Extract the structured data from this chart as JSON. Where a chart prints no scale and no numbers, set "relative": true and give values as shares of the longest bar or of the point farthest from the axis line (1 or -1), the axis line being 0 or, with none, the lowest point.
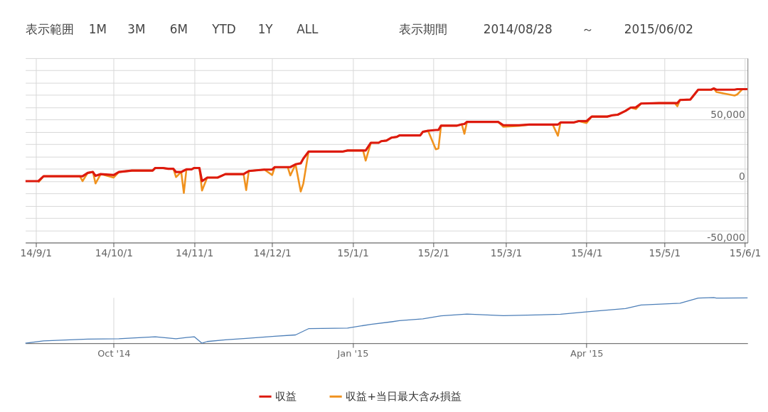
{
  "chart_data": [
    {
      "type": "line",
      "annotations": [
        "表示範囲",
        "1M",
        "3M",
        "6M",
        "YTD",
        "1Y",
        "ALL",
        "表示期間",
        "2014/08/28",
        "～",
        "2015/06/02"
      ],
      "x": [
        "2014-08-28",
        "2014-09-02",
        "2014-09-04",
        "2014-09-18",
        "2014-09-19",
        "2014-09-21",
        "2014-09-23",
        "2014-09-24",
        "2014-09-26",
        "2014-10-01",
        "2014-10-03",
        "2014-10-08",
        "2014-10-16",
        "2014-10-17",
        "2014-10-20",
        "2014-10-22",
        "2014-10-24",
        "2014-10-25",
        "2014-10-27",
        "2014-10-28",
        "2014-10-29",
        "2014-10-31",
        "2014-11-01",
        "2014-11-03",
        "2014-11-04",
        "2014-11-06",
        "2014-11-10",
        "2014-11-13",
        "2014-11-20",
        "2014-11-21",
        "2014-11-22",
        "2014-11-28",
        "2014-12-01",
        "2014-12-02",
        "2014-12-07",
        "2014-12-08",
        "2014-12-10",
        "2014-12-12",
        "2014-12-13",
        "2014-12-15",
        "2014-12-28",
        "2014-12-30",
        "2015-01-05",
        "2015-01-06",
        "2015-01-08",
        "2015-01-11",
        "2015-01-12",
        "2015-01-14",
        "2015-01-16",
        "2015-01-18",
        "2015-01-19",
        "2015-01-27",
        "2015-01-28",
        "2015-01-30",
        "2015-02-02",
        "2015-02-03",
        "2015-02-04",
        "2015-02-10",
        "2015-02-12",
        "2015-02-13",
        "2015-02-14",
        "2015-02-26",
        "2015-02-28",
        "2015-03-06",
        "2015-03-10",
        "2015-03-19",
        "2015-03-21",
        "2015-03-22",
        "2015-03-27",
        "2015-03-29",
        "2015-04-01",
        "2015-04-03",
        "2015-04-09",
        "2015-04-11",
        "2015-04-13",
        "2015-04-16",
        "2015-04-18",
        "2015-04-20",
        "2015-04-22",
        "2015-04-29",
        "2015-05-05",
        "2015-05-06",
        "2015-05-07",
        "2015-05-11",
        "2015-05-14",
        "2015-05-19",
        "2015-05-20",
        "2015-05-21",
        "2015-05-28",
        "2015-05-29",
        "2015-05-31",
        "2015-06-02"
      ],
      "series": [
        {
          "name": "収益",
          "color": "#dd1a0e",
          "values": [
            0,
            0,
            4000,
            4000,
            4000,
            6700,
            7500,
            4300,
            5700,
            5000,
            7400,
            8600,
            8600,
            10700,
            10700,
            10000,
            10000,
            7400,
            7400,
            8500,
            9600,
            9600,
            10700,
            10700,
            0,
            2900,
            2900,
            5700,
            5700,
            7000,
            8200,
            9400,
            9400,
            11400,
            11400,
            11400,
            13700,
            14500,
            18300,
            24000,
            24000,
            24900,
            24900,
            24900,
            31200,
            31200,
            32500,
            33000,
            35400,
            36000,
            37200,
            37200,
            40100,
            41000,
            41600,
            41600,
            45100,
            45100,
            46200,
            46500,
            48200,
            48200,
            45500,
            45500,
            46000,
            46000,
            46000,
            47700,
            47700,
            48800,
            48800,
            52500,
            52500,
            53600,
            54000,
            57100,
            59800,
            60000,
            63100,
            63500,
            63500,
            63500,
            66000,
            66400,
            74400,
            74400,
            75400,
            74400,
            74400,
            74800,
            74800,
            74800
          ]
        },
        {
          "name": "収益+当日最大含み損益",
          "color": "#f0921e",
          "values": [
            null,
            -1000,
            4000,
            4000,
            0,
            6700,
            7500,
            -1900,
            5700,
            2900,
            7400,
            8600,
            8600,
            10700,
            10700,
            10000,
            10000,
            3300,
            7400,
            -9600,
            9600,
            9600,
            10700,
            10700,
            -7700,
            2900,
            2900,
            5700,
            5700,
            -7300,
            8200,
            9400,
            5000,
            11400,
            11400,
            4600,
            13700,
            -8500,
            -1900,
            24000,
            24000,
            24900,
            24900,
            16700,
            31200,
            31200,
            32500,
            33000,
            35400,
            36000,
            37200,
            37200,
            40100,
            41000,
            25900,
            26500,
            45100,
            45100,
            46200,
            38500,
            48200,
            48200,
            44200,
            45000,
            46000,
            46000,
            36900,
            47700,
            47700,
            48800,
            47300,
            52500,
            52500,
            53600,
            54000,
            57100,
            59800,
            58600,
            63100,
            63500,
            63500,
            60900,
            66000,
            66400,
            74400,
            74400,
            75400,
            72500,
            69600,
            70500,
            74800,
            74800
          ]
        }
      ],
      "xlim": [
        "2014-08-28",
        "2015-06-02"
      ],
      "xticks": [
        {
          "value": "2014-09-01",
          "label": "14/9/1"
        },
        {
          "value": "2014-10-01",
          "label": "14/10/1"
        },
        {
          "value": "2014-11-01",
          "label": "14/11/1"
        },
        {
          "value": "2014-12-01",
          "label": "14/12/1"
        },
        {
          "value": "2015-01-01",
          "label": "15/1/1"
        },
        {
          "value": "2015-02-01",
          "label": "15/2/1"
        },
        {
          "value": "2015-03-01",
          "label": "15/3/1"
        },
        {
          "value": "2015-04-01",
          "label": "15/4/1"
        },
        {
          "value": "2015-05-01",
          "label": "15/5/1"
        },
        {
          "value": "2015-06-01",
          "label": "15/6/1"
        }
      ],
      "ylim": [
        -50000,
        100000
      ],
      "yticks": [
        {
          "value": -50000,
          "label": "-50,000"
        },
        {
          "value": -40000,
          "label": null
        },
        {
          "value": -30000,
          "label": null
        },
        {
          "value": -20000,
          "label": null
        },
        {
          "value": -10000,
          "label": null
        },
        0,
        {
          "value": 10000,
          "label": null
        },
        {
          "value": 20000,
          "label": null
        },
        {
          "value": 30000,
          "label": null
        },
        {
          "value": 40000,
          "label": null
        },
        {
          "value": 50000,
          "label": "50,000"
        },
        {
          "value": 60000,
          "label": null
        },
        {
          "value": 70000,
          "label": null
        },
        {
          "value": 80000,
          "label": null
        },
        {
          "value": 90000,
          "label": null
        },
        {
          "value": 100000,
          "label": null
        }
      ],
      "grid": true,
      "legend": "bottom",
      "line_style": "solid"
    },
    {
      "type": "line",
      "relative": true,
      "x": [
        "2014-08-28",
        "2014-09-04",
        "2014-09-21",
        "2014-10-03",
        "2014-10-17",
        "2014-10-25",
        "2014-10-29",
        "2014-11-01",
        "2014-11-04",
        "2014-11-06",
        "2014-11-13",
        "2014-11-22",
        "2014-12-02",
        "2014-12-10",
        "2014-12-15",
        "2014-12-30",
        "2015-01-08",
        "2015-01-16",
        "2015-01-19",
        "2015-01-28",
        "2015-02-04",
        "2015-02-14",
        "2015-02-28",
        "2015-03-22",
        "2015-04-03",
        "2015-04-16",
        "2015-04-22",
        "2015-05-07",
        "2015-05-14",
        "2015-05-20",
        "2015-05-21",
        "2015-06-02"
      ],
      "series": [
        {
          "color": "#4d7fb8",
          "values": [
            0,
            0.053,
            0.089,
            0.098,
            0.142,
            0.098,
            0.127,
            0.142,
            0,
            0.038,
            0.076,
            0.109,
            0.151,
            0.182,
            0.318,
            0.33,
            0.414,
            0.469,
            0.493,
            0.532,
            0.598,
            0.639,
            0.603,
            0.633,
            0.696,
            0.757,
            0.837,
            0.875,
            0.987,
            1,
            0.987,
            0.992
          ]
        }
      ],
      "xlim": [
        "2014-08-28",
        "2015-06-02"
      ],
      "xticks": [
        {
          "value": "2014-10-01",
          "label": "Oct '14"
        },
        {
          "value": "2015-01-01",
          "label": "Jan '15"
        },
        {
          "value": "2015-04-01",
          "label": "Apr '15"
        }
      ],
      "grid": "x",
      "tick_labels": "x"
    }
  ]
}
